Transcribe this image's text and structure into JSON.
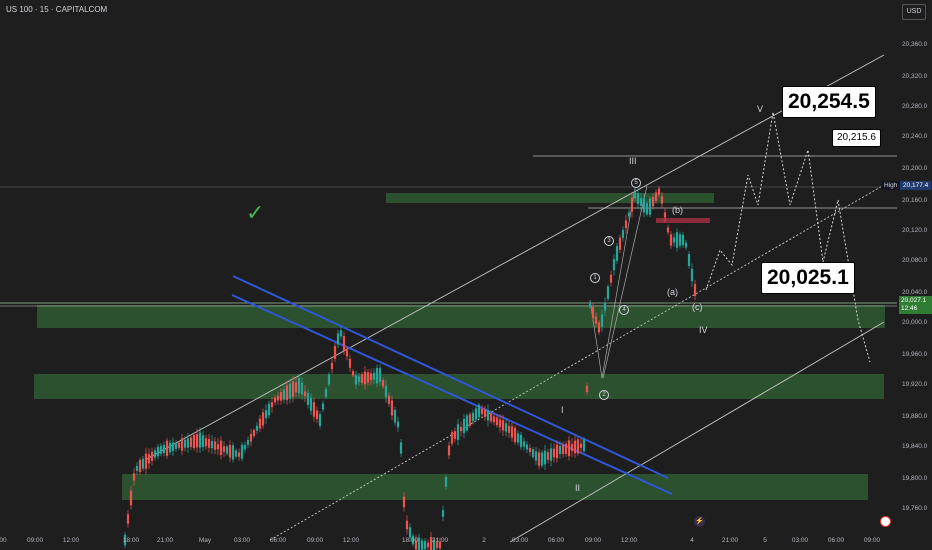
{
  "symbol": {
    "title": "US 100 · 15 · CAPITALCOM",
    "currency": "USD"
  },
  "price_axis": [
    "20,360.0",
    "20,320.0",
    "20,280.0",
    "20,240.0",
    "20,200.0",
    "20,160.0",
    "20,120.0",
    "20,080.0",
    "20,040.0",
    "20,000.0",
    "19,960.0",
    "19,920.0",
    "19,880.0",
    "19,840.0",
    "19,800.0",
    "19,760.0"
  ],
  "time_axis": [
    "00",
    "09:00",
    "12:00",
    "18:00",
    "21:00",
    "May",
    "03:00",
    "06:00",
    "09:00",
    "12:00",
    "18:00",
    "21:00",
    "2",
    "03:00",
    "06:00",
    "09:00",
    "12:00",
    "4",
    "21:00",
    "5",
    "03:00",
    "06:00",
    "09:00"
  ],
  "markers": {
    "high_label": "High",
    "high_price": "20,177.4",
    "current_price": "20,027.1",
    "countdown": "12:46"
  },
  "callouts": {
    "target_v": "20,254.5",
    "target_mid": "20,215.6",
    "support": "20,025.1"
  },
  "waves": {
    "roman": [
      "I",
      "II",
      "III",
      "IV",
      "V"
    ],
    "abc": [
      "(a)",
      "(b)",
      "(c)"
    ],
    "sub": [
      "1",
      "2",
      "3",
      "4",
      "5"
    ]
  },
  "check_mark": "✓",
  "colors": {
    "background": "#1e1e1e",
    "up": "#26a69a",
    "down": "#ef5350",
    "zone": "#2f5a32",
    "channel_blue": "#2f57d6",
    "line": "#c8c8c8"
  },
  "icons": {
    "event_icon": "lightning-icon",
    "flag_icon": "flag-icon"
  }
}
